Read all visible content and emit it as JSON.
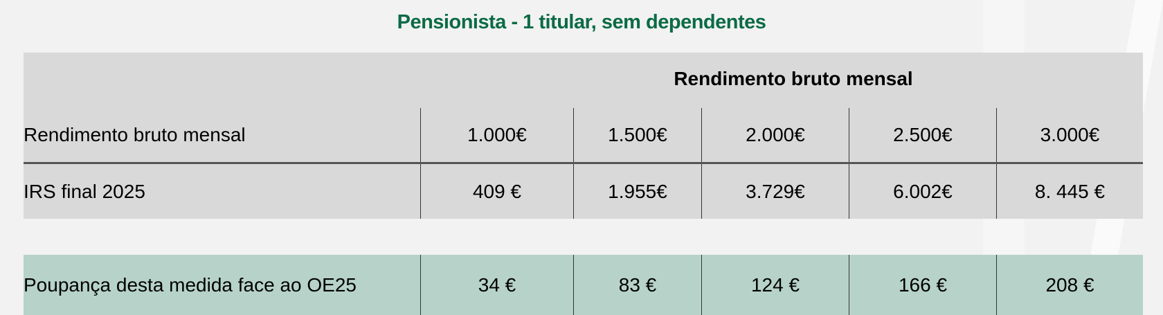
{
  "title": "Pensionista - 1 titular, sem dependentes",
  "table": {
    "group_header": "Rendimento bruto mensal",
    "rows": [
      {
        "label": "Rendimento bruto mensal",
        "values": [
          "1.000€",
          "1.500€",
          "2.000€",
          "2.500€",
          "3.000€"
        ]
      },
      {
        "label": "IRS final 2025",
        "values": [
          "409 €",
          "1.955€",
          "3.729€",
          "6.002€",
          "8. 445 €"
        ]
      }
    ],
    "savings_row": {
      "label": "Poupança desta medida face ao OE25",
      "values": [
        "34 €",
        "83 €",
        "124 €",
        "166 €",
        "208 €"
      ]
    }
  },
  "colors": {
    "title": "#0b6b45",
    "table_grey": "#d9d9d9",
    "savings_green": "#b7d3c9",
    "background": "#f2f2f2"
  }
}
